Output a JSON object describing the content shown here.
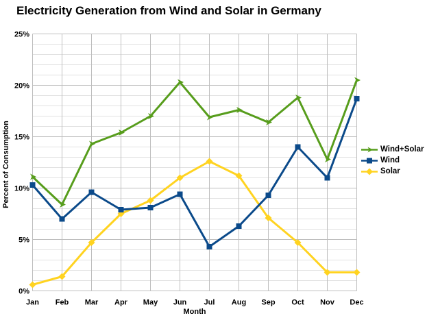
{
  "chart_data": {
    "type": "line",
    "title": "Electricity Generation from Wind and Solar in Germany",
    "xlabel": "Month",
    "ylabel": "Percent of Consumption",
    "categories": [
      "Jan",
      "Feb",
      "Mar",
      "Apr",
      "May",
      "Jun",
      "Jul",
      "Aug",
      "Sep",
      "Oct",
      "Nov",
      "Dec"
    ],
    "ylim": [
      0,
      25
    ],
    "ytick_labels": [
      "0%",
      "5%",
      "10%",
      "15%",
      "20%",
      "25%"
    ],
    "ytick_step": 5,
    "minor_ytick_step": 1,
    "grid": "horizontal major+minor, vertical per month",
    "legend_position": "right",
    "series": [
      {
        "name": "Wind+Solar",
        "color": "#579D1C",
        "marker": "arrow",
        "values": [
          11.1,
          8.4,
          14.3,
          15.4,
          17.0,
          20.3,
          16.9,
          17.6,
          16.4,
          18.8,
          12.8,
          20.5
        ]
      },
      {
        "name": "Wind",
        "color": "#0B4A8A",
        "marker": "square",
        "values": [
          10.3,
          7.0,
          9.6,
          7.9,
          8.1,
          9.4,
          4.3,
          6.3,
          9.3,
          14.0,
          11.0,
          18.7
        ]
      },
      {
        "name": "Solar",
        "color": "#FFD320",
        "marker": "diamond",
        "values": [
          0.6,
          1.4,
          4.7,
          7.5,
          8.8,
          11.0,
          12.6,
          11.2,
          7.1,
          4.7,
          1.8,
          1.8
        ]
      }
    ],
    "colors": {
      "major_grid": "#BEBEBE",
      "minor_grid": "#E1E1E1",
      "text": "#000000",
      "background": "#FFFFFF"
    }
  }
}
